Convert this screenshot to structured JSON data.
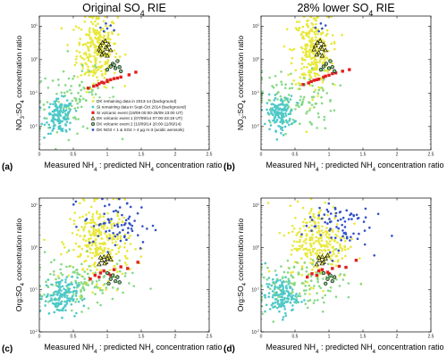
{
  "column_titles": {
    "left": [
      "Original SO",
      "4",
      " RIE"
    ],
    "right": [
      "28% lower SO",
      "4",
      " RIE"
    ]
  },
  "panel_letters": [
    "(a)",
    "(b)",
    "(c)",
    "(d)"
  ],
  "xlabel": [
    "Measured NH",
    "4",
    " : predicted NH",
    "4",
    " concentration ratio"
  ],
  "ylabel_top": [
    "NO",
    "3",
    ":SO",
    "4",
    " concentration ratio"
  ],
  "ylabel_bottom": [
    "Org:SO",
    "4",
    " concentration ratio"
  ],
  "x_ticks": [
    "0",
    "0.5",
    "1",
    "1.5",
    "2",
    "2.5"
  ],
  "y_ticks": [
    {
      "base": "10",
      "exp": "-2"
    },
    {
      "base": "10",
      "exp": "-1"
    },
    {
      "base": "10",
      "exp": "0"
    },
    {
      "base": "10",
      "exp": "1"
    }
  ],
  "legend": [
    {
      "key": "dk_bg",
      "text": "DK remaining data in 2013-14 (background)"
    },
    {
      "key": "si_bg",
      "text": "SI remaining data in Sept-Oct 2014 (background)"
    },
    {
      "key": "si_volc",
      "text": "SI volcanic event (19/09 00:00-25/09 23:00 UT)"
    },
    {
      "key": "dk_volc1",
      "text": "DK volcanic event 1 (07/09/14 07:00-23:19 UT)"
    },
    {
      "key": "dk_volc2",
      "text": "DK volcanic event 2 (10/09/14 20:00-11/09/14)"
    },
    {
      "key": "dk_acidic",
      "text": "DK NO3 < 1 & SO4 > 4 μg m-3 (acidic aerosols)"
    }
  ],
  "series_styles": {
    "dk_bg": {
      "color": "#e8e83a",
      "shape": "circle"
    },
    "si_bg": {
      "color": "#4ec8c8",
      "shape": "circle"
    },
    "si_volc": {
      "color": "#e02020",
      "shape": "square"
    },
    "dk_volc1": {
      "color": "#111111",
      "fill": "#f3f35a",
      "shape": "triangle"
    },
    "dk_volc2": {
      "color": "#111111",
      "fill": "#7ec87e",
      "shape": "circle-open"
    },
    "dk_acidic": {
      "color": "#3050c8",
      "shape": "circle"
    },
    "green_bg": {
      "color": "#86d986",
      "shape": "circle"
    }
  },
  "chart_data": [
    {
      "type": "scatter",
      "panel": "a",
      "xlim": [
        0,
        2.5
      ],
      "ylim_log": [
        0.002,
        20
      ],
      "y_scale": "log",
      "legend_position": "bottom-right",
      "series": [
        {
          "key": "dk_bg",
          "spec": {
            "cx": 0.85,
            "cy": 2.0,
            "sx": 0.15,
            "sy": 0.55,
            "n": 260
          }
        },
        {
          "key": "green_bg",
          "spec": {
            "cx": 0.55,
            "cy": 0.06,
            "sx": 0.3,
            "sy": 0.45,
            "n": 110
          }
        },
        {
          "key": "si_bg",
          "spec": {
            "cx": 0.3,
            "cy": 0.02,
            "sx": 0.1,
            "sy": 0.25,
            "n": 140
          }
        },
        {
          "key": "si_volc",
          "points": [
            [
              0.72,
              0.14
            ],
            [
              0.8,
              0.16
            ],
            [
              0.88,
              0.19
            ],
            [
              0.95,
              0.2
            ],
            [
              1.0,
              0.22
            ],
            [
              1.05,
              0.25
            ],
            [
              1.1,
              0.27
            ],
            [
              1.2,
              0.3
            ],
            [
              1.32,
              0.35
            ],
            [
              1.42,
              0.42
            ],
            [
              0.85,
              0.17
            ],
            [
              0.92,
              0.21
            ],
            [
              1.0,
              0.24
            ],
            [
              1.15,
              0.28
            ]
          ]
        },
        {
          "key": "dk_volc1",
          "points": [
            [
              0.88,
              2.0
            ],
            [
              0.9,
              2.6
            ],
            [
              0.93,
              3.2
            ],
            [
              0.95,
              1.6
            ],
            [
              0.98,
              2.3
            ],
            [
              1.0,
              1.3
            ],
            [
              1.02,
              2.8
            ],
            [
              1.05,
              1.9
            ],
            [
              0.92,
              1.4
            ],
            [
              0.97,
              3.6
            ],
            [
              1.0,
              2.1
            ],
            [
              0.9,
              1.8
            ]
          ]
        },
        {
          "key": "dk_volc2",
          "points": [
            [
              1.0,
              0.5
            ],
            [
              1.05,
              0.62
            ],
            [
              1.08,
              0.75
            ],
            [
              1.12,
              0.55
            ],
            [
              1.15,
              0.9
            ],
            [
              1.18,
              0.6
            ],
            [
              1.2,
              0.45
            ],
            [
              1.1,
              0.7
            ]
          ]
        },
        {
          "key": "dk_acidic",
          "points": [
            [
              0.95,
              7.0
            ],
            [
              1.0,
              8.5
            ],
            [
              1.05,
              10.5
            ],
            [
              0.9,
              9.0
            ],
            [
              0.98,
              12.0
            ],
            [
              1.1,
              7.5
            ]
          ]
        }
      ]
    },
    {
      "type": "scatter",
      "panel": "b",
      "xlim": [
        0,
        2.5
      ],
      "ylim_log": [
        0.002,
        20
      ],
      "y_scale": "log",
      "series": [
        {
          "key": "dk_bg",
          "spec": {
            "cx": 0.75,
            "cy": 1.8,
            "sx": 0.14,
            "sy": 0.6,
            "n": 260
          }
        },
        {
          "key": "green_bg",
          "spec": {
            "cx": 0.5,
            "cy": 0.06,
            "sx": 0.3,
            "sy": 0.45,
            "n": 110
          }
        },
        {
          "key": "si_bg",
          "spec": {
            "cx": 0.28,
            "cy": 0.025,
            "sx": 0.1,
            "sy": 0.25,
            "n": 140
          }
        },
        {
          "key": "si_volc",
          "points": [
            [
              0.62,
              0.18
            ],
            [
              0.7,
              0.2
            ],
            [
              0.78,
              0.24
            ],
            [
              0.85,
              0.26
            ],
            [
              0.92,
              0.3
            ],
            [
              1.0,
              0.34
            ],
            [
              1.1,
              0.4
            ],
            [
              1.2,
              0.45
            ],
            [
              1.3,
              0.5
            ],
            [
              0.74,
              0.22
            ],
            [
              0.82,
              0.25
            ],
            [
              0.95,
              0.32
            ],
            [
              1.05,
              0.38
            ]
          ]
        },
        {
          "key": "dk_volc1",
          "points": [
            [
              0.78,
              2.0
            ],
            [
              0.8,
              2.6
            ],
            [
              0.83,
              3.2
            ],
            [
              0.85,
              1.6
            ],
            [
              0.88,
              2.3
            ],
            [
              0.9,
              1.3
            ],
            [
              0.92,
              2.8
            ],
            [
              0.95,
              1.9
            ],
            [
              0.82,
              1.4
            ],
            [
              0.87,
              3.6
            ],
            [
              0.9,
              2.1
            ]
          ]
        },
        {
          "key": "dk_volc2",
          "points": [
            [
              0.88,
              0.5
            ],
            [
              0.92,
              0.62
            ],
            [
              0.96,
              0.75
            ],
            [
              1.0,
              0.55
            ],
            [
              1.02,
              0.9
            ],
            [
              1.05,
              0.6
            ],
            [
              1.08,
              0.45
            ]
          ]
        },
        {
          "key": "dk_acidic",
          "points": [
            [
              0.85,
              7.0
            ],
            [
              0.9,
              8.5
            ],
            [
              0.95,
              10.5
            ],
            [
              0.8,
              9.0
            ],
            [
              0.88,
              12.0
            ]
          ]
        }
      ]
    },
    {
      "type": "scatter",
      "panel": "c",
      "xlim": [
        0,
        2.5
      ],
      "ylim_log": [
        0.01,
        15
      ],
      "y_scale": "log",
      "series": [
        {
          "key": "dk_bg",
          "spec": {
            "cx": 0.9,
            "cy": 1.3,
            "sx": 0.22,
            "sy": 0.45,
            "n": 280
          }
        },
        {
          "key": "green_bg",
          "spec": {
            "cx": 0.6,
            "cy": 0.14,
            "sx": 0.35,
            "sy": 0.3,
            "n": 120
          }
        },
        {
          "key": "si_bg",
          "spec": {
            "cx": 0.32,
            "cy": 0.07,
            "sx": 0.12,
            "sy": 0.22,
            "n": 140
          }
        },
        {
          "key": "si_volc",
          "points": [
            [
              0.75,
              0.18
            ],
            [
              0.82,
              0.22
            ],
            [
              0.88,
              0.2
            ],
            [
              0.95,
              0.28
            ],
            [
              1.02,
              0.24
            ],
            [
              1.1,
              0.3
            ],
            [
              1.2,
              0.35
            ],
            [
              1.3,
              0.32
            ],
            [
              1.45,
              0.45
            ],
            [
              0.9,
              0.25
            ],
            [
              1.05,
              0.22
            ]
          ]
        },
        {
          "key": "dk_volc1",
          "points": [
            [
              0.88,
              0.4
            ],
            [
              0.92,
              0.5
            ],
            [
              0.95,
              0.6
            ],
            [
              0.98,
              0.45
            ],
            [
              1.0,
              0.55
            ],
            [
              1.02,
              0.65
            ],
            [
              0.9,
              0.58
            ],
            [
              0.96,
              0.42
            ],
            [
              1.05,
              0.52
            ]
          ]
        },
        {
          "key": "dk_volc2",
          "points": [
            [
              1.02,
              0.14
            ],
            [
              1.05,
              0.18
            ],
            [
              1.08,
              0.22
            ],
            [
              1.12,
              0.16
            ],
            [
              1.15,
              0.2
            ],
            [
              1.0,
              0.25
            ],
            [
              1.18,
              0.15
            ]
          ]
        },
        {
          "key": "dk_acidic",
          "spec": {
            "cx": 1.15,
            "cy": 3.5,
            "sx": 0.25,
            "sy": 0.3,
            "n": 70
          }
        }
      ]
    },
    {
      "type": "scatter",
      "panel": "d",
      "xlim": [
        0,
        2.5
      ],
      "ylim_log": [
        0.01,
        15
      ],
      "y_scale": "log",
      "series": [
        {
          "key": "dk_bg",
          "spec": {
            "cx": 0.85,
            "cy": 1.3,
            "sx": 0.22,
            "sy": 0.45,
            "n": 280
          }
        },
        {
          "key": "green_bg",
          "spec": {
            "cx": 0.55,
            "cy": 0.14,
            "sx": 0.35,
            "sy": 0.3,
            "n": 120
          }
        },
        {
          "key": "si_bg",
          "spec": {
            "cx": 0.3,
            "cy": 0.07,
            "sx": 0.12,
            "sy": 0.22,
            "n": 140
          }
        },
        {
          "key": "si_volc",
          "points": [
            [
              0.68,
              0.2
            ],
            [
              0.75,
              0.24
            ],
            [
              0.82,
              0.22
            ],
            [
              0.9,
              0.3
            ],
            [
              0.98,
              0.26
            ],
            [
              1.05,
              0.32
            ],
            [
              1.15,
              0.36
            ],
            [
              1.25,
              0.34
            ],
            [
              1.4,
              0.5
            ],
            [
              0.85,
              0.28
            ],
            [
              1.0,
              0.24
            ]
          ]
        },
        {
          "key": "dk_volc1",
          "points": [
            [
              0.82,
              0.4
            ],
            [
              0.86,
              0.5
            ],
            [
              0.9,
              0.6
            ],
            [
              0.92,
              0.45
            ],
            [
              0.95,
              0.55
            ],
            [
              0.98,
              0.65
            ],
            [
              0.85,
              0.58
            ],
            [
              0.9,
              0.42
            ]
          ]
        },
        {
          "key": "dk_volc2",
          "points": [
            [
              0.95,
              0.14
            ],
            [
              0.98,
              0.18
            ],
            [
              1.02,
              0.22
            ],
            [
              1.05,
              0.16
            ],
            [
              1.08,
              0.2
            ],
            [
              0.92,
              0.25
            ]
          ]
        },
        {
          "key": "dk_acidic",
          "spec": {
            "cx": 1.1,
            "cy": 3.8,
            "sx": 0.25,
            "sy": 0.3,
            "n": 75
          }
        }
      ]
    }
  ]
}
